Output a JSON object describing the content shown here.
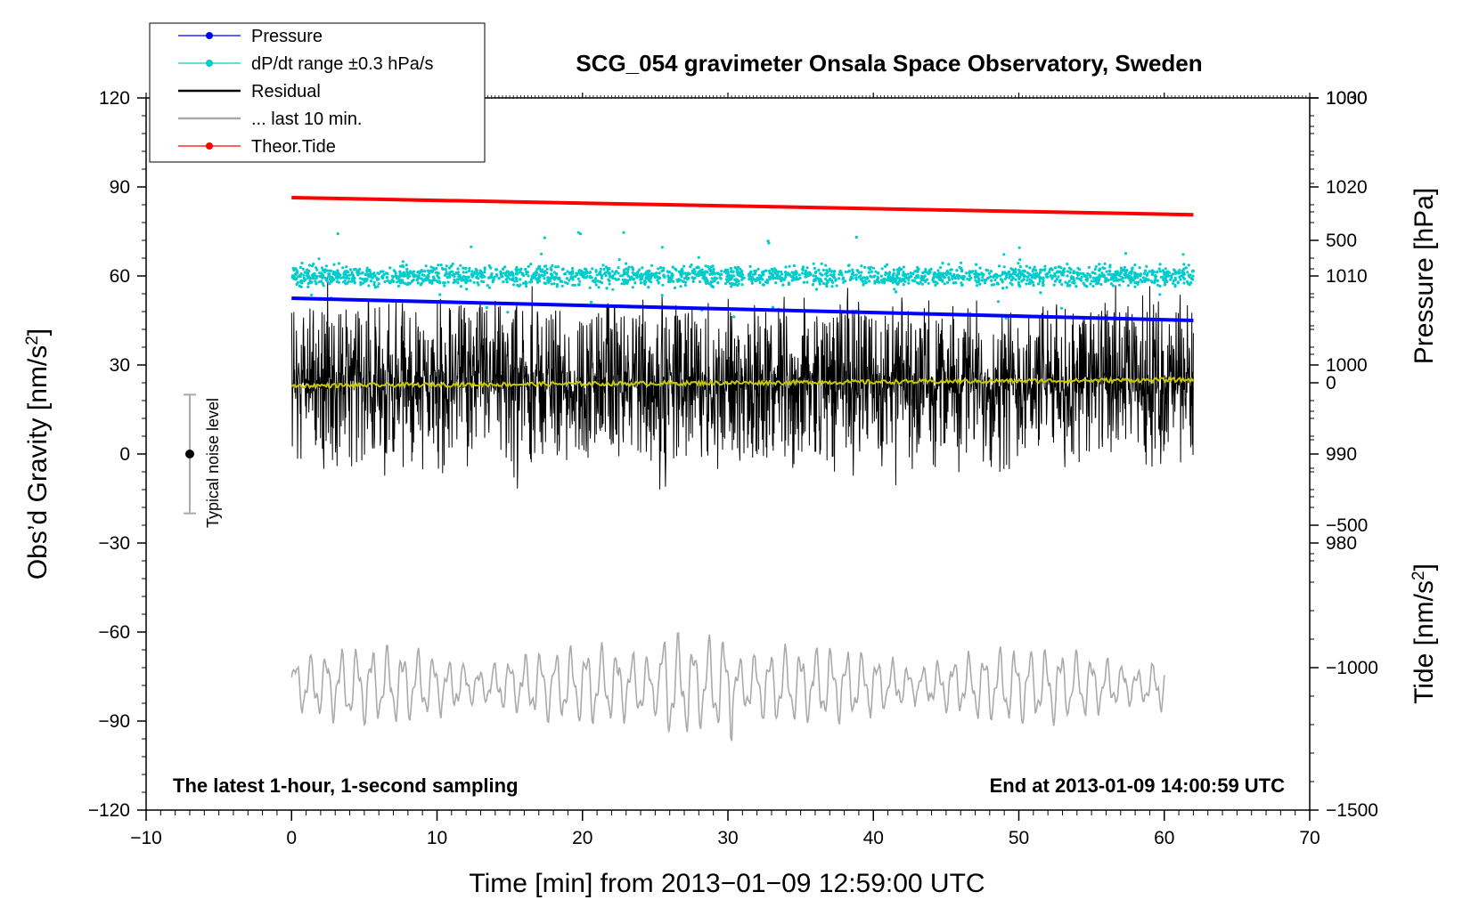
{
  "chart_data": {
    "type": "line",
    "title": "SCG_054 gravimeter Onsala Space Observatory, Sweden",
    "xlabel": "Time [min] from 2013−01−09 12:59:00 UTC",
    "ylabel_left_main": "Obs’d Gravity [nm/s",
    "ylabel_left_sup": "2",
    "ylabel_left_close": "]",
    "ylabel_right_pressure": "Pressure [hPa]",
    "ylabel_right_tide_main": "Tide [nm/s",
    "ylabel_right_tide_sup": "2",
    "ylabel_right_tide_close": "]",
    "xlim": [
      -10,
      70
    ],
    "ylim": [
      -120,
      120
    ],
    "pressure_lim": [
      950,
      1030
    ],
    "tide_lim": [
      -1500,
      1000
    ],
    "x_ticks": [
      -10,
      0,
      10,
      20,
      30,
      40,
      50,
      60,
      70
    ],
    "x_tick_labels": [
      "−10",
      "0",
      "10",
      "20",
      "30",
      "40",
      "50",
      "60",
      "70"
    ],
    "y_ticks": [
      -120,
      -90,
      -60,
      -30,
      0,
      30,
      60,
      90,
      120
    ],
    "y_tick_labels": [
      "−120",
      "−90",
      "−60",
      "−30",
      "0",
      "30",
      "60",
      "90",
      "120"
    ],
    "pressure_ticks": [
      980,
      990,
      1000,
      1010,
      1020,
      1030
    ],
    "pressure_tick_labels": [
      "980",
      "990",
      "1000",
      "1010",
      "1020",
      "1030"
    ],
    "tide_ticks": [
      -1500,
      -1000,
      -500,
      0,
      500,
      1000
    ],
    "tide_tick_labels": [
      "−1500",
      "−1000",
      "−500",
      "0",
      "500",
      "1000"
    ],
    "legend": [
      {
        "label": "Pressure",
        "color": "#0000ff",
        "marker": true
      },
      {
        "label": "dP/dt range ±0.3 hPa/s",
        "color": "#00cccc",
        "marker": true
      },
      {
        "label": "Residual",
        "color": "#000000",
        "marker": false
      },
      {
        "label": "... last 10 min.",
        "color": "#aaaaaa",
        "marker": false
      },
      {
        "label": "Theor.Tide",
        "color": "#ff0000",
        "marker": true
      }
    ],
    "annotation_left": "The latest 1-hour, 1-second sampling",
    "annotation_right": "End at 2013-01-09 14:00:59 UTC",
    "noise_label": "Typical noise level",
    "noise_bar": {
      "x": -7,
      "center": 0,
      "low": -20,
      "high": 20
    },
    "series": {
      "pressure": {
        "name": "Pressure",
        "color": "#0000ff",
        "x_range": [
          0,
          62
        ],
        "start": 1007.5,
        "end": 1005.0
      },
      "dpdt": {
        "name": "dP/dt range",
        "color": "#00cccc",
        "x_range": [
          0,
          62
        ],
        "center": 60,
        "spread": 5
      },
      "residual": {
        "name": "Residual",
        "color": "#000000",
        "x_range": [
          0,
          62
        ],
        "center": 24,
        "spread": 30
      },
      "residual_mean": {
        "name": "Residual mean",
        "color": "#c8c800",
        "x_range": [
          0,
          62
        ],
        "start": 23,
        "end": 25
      },
      "theor_tide": {
        "name": "Theor.Tide",
        "color": "#ff0000",
        "x_range": [
          0,
          62
        ],
        "start": 650,
        "end": 590
      },
      "last10": {
        "name": "... last 10 min.",
        "color": "#aaaaaa",
        "x_range": [
          0,
          60
        ],
        "center": -78,
        "amplitude": 12
      }
    }
  }
}
